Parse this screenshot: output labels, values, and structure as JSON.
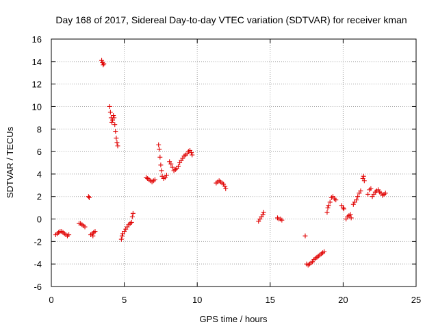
{
  "chart_data": {
    "type": "scatter",
    "title": "Day 168 of 2017, Sidereal Day-to-day VTEC variation (SDTVAR) for receiver kman",
    "xlabel": "GPS time / hours",
    "ylabel": "SDTVAR / TECUs",
    "xlim": [
      0,
      25
    ],
    "ylim": [
      -6,
      16
    ],
    "xticks": [
      0,
      5,
      10,
      15,
      20,
      25
    ],
    "yticks": [
      -6,
      -4,
      -2,
      0,
      2,
      4,
      6,
      8,
      10,
      12,
      14,
      16
    ],
    "grid": true,
    "marker": "+",
    "color": "#e00000",
    "series": [
      {
        "name": "SDTVAR",
        "points": [
          [
            0.3,
            -1.4
          ],
          [
            0.4,
            -1.3
          ],
          [
            0.5,
            -1.2
          ],
          [
            0.6,
            -1.1
          ],
          [
            0.7,
            -1.1
          ],
          [
            0.8,
            -1.2
          ],
          [
            0.9,
            -1.3
          ],
          [
            1.0,
            -1.4
          ],
          [
            1.1,
            -1.5
          ],
          [
            1.2,
            -1.4
          ],
          [
            1.9,
            -0.4
          ],
          [
            2.0,
            -0.4
          ],
          [
            2.1,
            -0.5
          ],
          [
            2.2,
            -0.6
          ],
          [
            2.3,
            -0.7
          ],
          [
            2.55,
            2.0
          ],
          [
            2.6,
            1.9
          ],
          [
            2.7,
            -1.4
          ],
          [
            2.8,
            -1.3
          ],
          [
            2.9,
            -1.2
          ],
          [
            3.0,
            -1.1
          ],
          [
            2.85,
            -1.5
          ],
          [
            3.45,
            14.1
          ],
          [
            3.5,
            13.9
          ],
          [
            3.55,
            13.7
          ],
          [
            3.6,
            13.8
          ],
          [
            4.0,
            10.0
          ],
          [
            4.05,
            9.5
          ],
          [
            4.1,
            9.0
          ],
          [
            4.15,
            8.6
          ],
          [
            4.2,
            8.8
          ],
          [
            4.25,
            9.2
          ],
          [
            4.3,
            9.0
          ],
          [
            4.35,
            8.4
          ],
          [
            4.4,
            7.8
          ],
          [
            4.45,
            7.2
          ],
          [
            4.5,
            6.8
          ],
          [
            4.55,
            6.5
          ],
          [
            4.8,
            -1.8
          ],
          [
            4.85,
            -1.5
          ],
          [
            4.9,
            -1.3
          ],
          [
            5.0,
            -1.1
          ],
          [
            5.1,
            -0.9
          ],
          [
            5.2,
            -0.7
          ],
          [
            5.3,
            -0.5
          ],
          [
            5.4,
            -0.4
          ],
          [
            5.5,
            -0.3
          ],
          [
            5.55,
            0.2
          ],
          [
            5.6,
            0.5
          ],
          [
            6.5,
            3.7
          ],
          [
            6.6,
            3.6
          ],
          [
            6.7,
            3.5
          ],
          [
            6.8,
            3.4
          ],
          [
            6.9,
            3.3
          ],
          [
            7.0,
            3.4
          ],
          [
            7.1,
            3.5
          ],
          [
            7.35,
            6.6
          ],
          [
            7.4,
            6.2
          ],
          [
            7.45,
            5.5
          ],
          [
            7.5,
            4.8
          ],
          [
            7.55,
            4.3
          ],
          [
            7.6,
            3.8
          ],
          [
            7.7,
            3.6
          ],
          [
            7.8,
            3.7
          ],
          [
            7.9,
            3.9
          ],
          [
            8.1,
            5.1
          ],
          [
            8.2,
            4.9
          ],
          [
            8.3,
            4.6
          ],
          [
            8.4,
            4.3
          ],
          [
            8.5,
            4.4
          ],
          [
            8.6,
            4.5
          ],
          [
            8.7,
            4.7
          ],
          [
            8.8,
            5.0
          ],
          [
            8.9,
            5.2
          ],
          [
            9.0,
            5.4
          ],
          [
            9.1,
            5.6
          ],
          [
            9.2,
            5.7
          ],
          [
            9.3,
            5.8
          ],
          [
            9.4,
            6.0
          ],
          [
            9.5,
            6.1
          ],
          [
            9.6,
            5.9
          ],
          [
            9.65,
            5.7
          ],
          [
            11.3,
            3.2
          ],
          [
            11.4,
            3.3
          ],
          [
            11.5,
            3.4
          ],
          [
            11.6,
            3.3
          ],
          [
            11.7,
            3.2
          ],
          [
            11.8,
            3.1
          ],
          [
            11.9,
            2.9
          ],
          [
            11.95,
            2.7
          ],
          [
            14.2,
            -0.2
          ],
          [
            14.3,
            0.0
          ],
          [
            14.4,
            0.2
          ],
          [
            14.5,
            0.4
          ],
          [
            14.55,
            0.6
          ],
          [
            15.5,
            0.1
          ],
          [
            15.6,
            0.0
          ],
          [
            15.7,
            0.0
          ],
          [
            15.8,
            -0.1
          ],
          [
            17.4,
            -1.5
          ],
          [
            17.5,
            -4.0
          ],
          [
            17.6,
            -4.1
          ],
          [
            17.7,
            -4.0
          ],
          [
            17.8,
            -3.9
          ],
          [
            17.9,
            -3.8
          ],
          [
            18.0,
            -3.6
          ],
          [
            18.1,
            -3.5
          ],
          [
            18.2,
            -3.4
          ],
          [
            18.3,
            -3.3
          ],
          [
            18.4,
            -3.2
          ],
          [
            18.5,
            -3.1
          ],
          [
            18.6,
            -3.0
          ],
          [
            18.7,
            -2.9
          ],
          [
            18.9,
            0.6
          ],
          [
            18.95,
            1.0
          ],
          [
            19.0,
            1.2
          ],
          [
            19.1,
            1.5
          ],
          [
            19.2,
            1.9
          ],
          [
            19.3,
            2.0
          ],
          [
            19.4,
            1.8
          ],
          [
            19.5,
            1.7
          ],
          [
            19.9,
            1.2
          ],
          [
            20.0,
            1.0
          ],
          [
            20.05,
            0.9
          ],
          [
            20.2,
            0.0
          ],
          [
            20.3,
            0.2
          ],
          [
            20.4,
            0.3
          ],
          [
            20.5,
            0.4
          ],
          [
            20.55,
            0.1
          ],
          [
            20.7,
            1.3
          ],
          [
            20.8,
            1.5
          ],
          [
            20.9,
            1.7
          ],
          [
            21.0,
            2.0
          ],
          [
            21.1,
            2.3
          ],
          [
            21.2,
            2.5
          ],
          [
            21.35,
            3.6
          ],
          [
            21.4,
            3.8
          ],
          [
            21.45,
            3.4
          ],
          [
            21.7,
            2.2
          ],
          [
            21.8,
            2.6
          ],
          [
            21.9,
            2.7
          ],
          [
            22.0,
            2.0
          ],
          [
            22.1,
            2.2
          ],
          [
            22.2,
            2.4
          ],
          [
            22.3,
            2.5
          ],
          [
            22.4,
            2.6
          ],
          [
            22.5,
            2.4
          ],
          [
            22.6,
            2.3
          ],
          [
            22.7,
            2.1
          ],
          [
            22.8,
            2.2
          ],
          [
            22.9,
            2.3
          ]
        ]
      }
    ]
  }
}
